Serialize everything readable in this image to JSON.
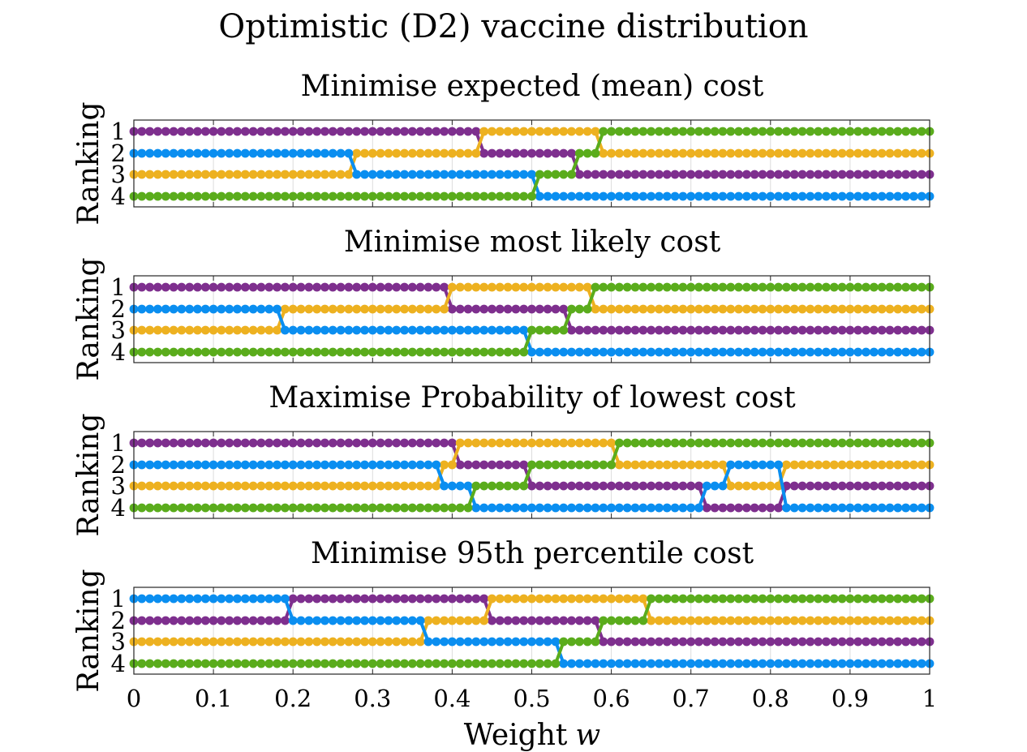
{
  "figure": {
    "title": "Optimistic (D2) vaccine distribution",
    "xlabel": "Weight",
    "xlabel_var": "w"
  },
  "colors": {
    "purple": "#7e2f8e",
    "yellow": "#edb120",
    "blue": "#0a8ef0",
    "green": "#5aac1c"
  },
  "chart_data": [
    {
      "type": "line",
      "title": "Minimise expected (mean) cost",
      "ylabel": "Ranking",
      "xlim": [
        0,
        1
      ],
      "ylim": [
        1,
        4
      ],
      "x_step": 0.01,
      "x_ticks": [
        "0",
        "0.1",
        "0.2",
        "0.3",
        "0.4",
        "0.5",
        "0.6",
        "0.7",
        "0.8",
        "0.9",
        "1"
      ],
      "y_ticks": [
        "1",
        "2",
        "3",
        "4"
      ],
      "grid": true,
      "series": [
        {
          "color": "purple",
          "ranks": [
            [
              0,
              1
            ],
            [
              0.44,
              2
            ],
            [
              0.56,
              3
            ]
          ]
        },
        {
          "color": "yellow",
          "ranks": [
            [
              0,
              3
            ],
            [
              0.28,
              2
            ],
            [
              0.44,
              1
            ],
            [
              0.59,
              2
            ]
          ]
        },
        {
          "color": "blue",
          "ranks": [
            [
              0,
              2
            ],
            [
              0.28,
              3
            ],
            [
              0.51,
              4
            ]
          ]
        },
        {
          "color": "green",
          "ranks": [
            [
              0,
              4
            ],
            [
              0.51,
              3
            ],
            [
              0.56,
              2
            ],
            [
              0.59,
              1
            ]
          ]
        }
      ]
    },
    {
      "type": "line",
      "title": "Minimise most likely cost",
      "ylabel": "Ranking",
      "xlim": [
        0,
        1
      ],
      "ylim": [
        1,
        4
      ],
      "x_step": 0.01,
      "x_ticks": [
        "0",
        "0.1",
        "0.2",
        "0.3",
        "0.4",
        "0.5",
        "0.6",
        "0.7",
        "0.8",
        "0.9",
        "1"
      ],
      "y_ticks": [
        "1",
        "2",
        "3",
        "4"
      ],
      "grid": true,
      "series": [
        {
          "color": "purple",
          "ranks": [
            [
              0,
              1
            ],
            [
              0.4,
              2
            ],
            [
              0.55,
              3
            ]
          ]
        },
        {
          "color": "yellow",
          "ranks": [
            [
              0,
              3
            ],
            [
              0.19,
              2
            ],
            [
              0.4,
              1
            ],
            [
              0.58,
              2
            ]
          ]
        },
        {
          "color": "blue",
          "ranks": [
            [
              0,
              2
            ],
            [
              0.19,
              3
            ],
            [
              0.5,
              4
            ]
          ]
        },
        {
          "color": "green",
          "ranks": [
            [
              0,
              4
            ],
            [
              0.5,
              3
            ],
            [
              0.55,
              2
            ],
            [
              0.58,
              1
            ]
          ]
        }
      ]
    },
    {
      "type": "line",
      "title": "Maximise Probability of lowest cost",
      "ylabel": "Ranking",
      "xlim": [
        0,
        1
      ],
      "ylim": [
        1,
        4
      ],
      "x_step": 0.01,
      "x_ticks": [
        "0",
        "0.1",
        "0.2",
        "0.3",
        "0.4",
        "0.5",
        "0.6",
        "0.7",
        "0.8",
        "0.9",
        "1"
      ],
      "y_ticks": [
        "1",
        "2",
        "3",
        "4"
      ],
      "grid": true,
      "series": [
        {
          "color": "purple",
          "ranks": [
            [
              0,
              1
            ],
            [
              0.41,
              2
            ],
            [
              0.5,
              3
            ],
            [
              0.72,
              4
            ],
            [
              0.82,
              3
            ]
          ]
        },
        {
          "color": "yellow",
          "ranks": [
            [
              0,
              3
            ],
            [
              0.39,
              2
            ],
            [
              0.41,
              1
            ],
            [
              0.61,
              2
            ],
            [
              0.75,
              3
            ],
            [
              0.82,
              2
            ]
          ]
        },
        {
          "color": "blue",
          "ranks": [
            [
              0,
              2
            ],
            [
              0.39,
              3
            ],
            [
              0.43,
              4
            ],
            [
              0.72,
              3
            ],
            [
              0.75,
              2
            ],
            [
              0.82,
              4
            ]
          ]
        },
        {
          "color": "green",
          "ranks": [
            [
              0,
              4
            ],
            [
              0.43,
              3
            ],
            [
              0.5,
              2
            ],
            [
              0.61,
              1
            ]
          ]
        }
      ]
    },
    {
      "type": "line",
      "title": "Minimise 95th percentile cost",
      "ylabel": "Ranking",
      "xlim": [
        0,
        1
      ],
      "ylim": [
        1,
        4
      ],
      "x_step": 0.01,
      "x_ticks": [
        "0",
        "0.1",
        "0.2",
        "0.3",
        "0.4",
        "0.5",
        "0.6",
        "0.7",
        "0.8",
        "0.9",
        "1"
      ],
      "y_ticks": [
        "1",
        "2",
        "3",
        "4"
      ],
      "grid": true,
      "series": [
        {
          "color": "purple",
          "ranks": [
            [
              0,
              2
            ],
            [
              0.2,
              1
            ],
            [
              0.45,
              2
            ],
            [
              0.59,
              3
            ]
          ]
        },
        {
          "color": "yellow",
          "ranks": [
            [
              0,
              3
            ],
            [
              0.37,
              2
            ],
            [
              0.45,
              1
            ],
            [
              0.65,
              2
            ]
          ]
        },
        {
          "color": "blue",
          "ranks": [
            [
              0,
              1
            ],
            [
              0.2,
              2
            ],
            [
              0.37,
              3
            ],
            [
              0.54,
              4
            ]
          ]
        },
        {
          "color": "green",
          "ranks": [
            [
              0,
              4
            ],
            [
              0.54,
              3
            ],
            [
              0.59,
              2
            ],
            [
              0.65,
              1
            ]
          ]
        }
      ]
    }
  ]
}
